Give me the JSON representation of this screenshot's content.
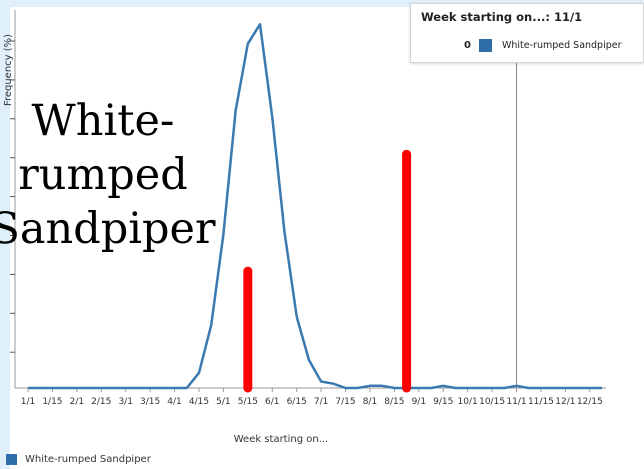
{
  "tooltip": {
    "title": "Week starting on...: 11/1",
    "value": "0",
    "series_name": "White-rumped Sandpiper"
  },
  "overlay_label": "White-rumped Sandpiper",
  "legend": {
    "label": "White-rumped Sandpiper"
  },
  "colors": {
    "series": "#3a7ab0",
    "swatch": "#2e6faa",
    "marker": "#ff0000",
    "axis": "#9a9a9a"
  },
  "chart_data": {
    "type": "line",
    "title": "",
    "xlabel": "Week starting on...",
    "ylabel": "Frequency (%)",
    "categories": [
      "1/1",
      "1/8",
      "1/15",
      "1/22",
      "2/1",
      "2/8",
      "2/15",
      "2/22",
      "3/1",
      "3/8",
      "3/15",
      "3/22",
      "4/1",
      "4/8",
      "4/15",
      "4/22",
      "5/1",
      "5/8",
      "5/15",
      "5/22",
      "6/1",
      "6/8",
      "6/15",
      "6/22",
      "7/1",
      "7/8",
      "7/15",
      "7/22",
      "8/1",
      "8/8",
      "8/15",
      "8/22",
      "9/1",
      "9/8",
      "9/15",
      "9/22",
      "10/1",
      "10/8",
      "10/15",
      "10/22",
      "11/1",
      "11/8",
      "11/15",
      "11/22",
      "12/1",
      "12/8",
      "12/15",
      "12/22"
    ],
    "tick_labels": [
      "1/1",
      "1/15",
      "2/1",
      "2/15",
      "3/1",
      "3/15",
      "4/1",
      "4/15",
      "5/1",
      "5/15",
      "6/1",
      "6/15",
      "7/1",
      "7/15",
      "8/1",
      "8/15",
      "9/1",
      "9/15",
      "10/1",
      "10/15",
      "11/1",
      "11/15",
      "12/1",
      "12/15"
    ],
    "series": [
      {
        "name": "White-rumped Sandpiper",
        "values": [
          0,
          0,
          0,
          0,
          0,
          0,
          0,
          0,
          0,
          0,
          0,
          0,
          0,
          0,
          0.7,
          2.9,
          7.1,
          12.8,
          15.9,
          16.8,
          12.5,
          7.2,
          3.3,
          1.3,
          0.3,
          0.2,
          0,
          0,
          0.1,
          0.1,
          0,
          0,
          0,
          0,
          0.1,
          0,
          0,
          0,
          0,
          0,
          0.1,
          0,
          0,
          0,
          0,
          0,
          0,
          0
        ]
      }
    ],
    "ylim": [
      0,
      17
    ],
    "grid": false,
    "crosshair_at": "11/1",
    "markers": [
      {
        "x": "5/15",
        "from": 0,
        "to": 5.4
      },
      {
        "x": "8/22",
        "from": 0,
        "to": 10.8
      }
    ],
    "legend_position": "bottom-left"
  }
}
